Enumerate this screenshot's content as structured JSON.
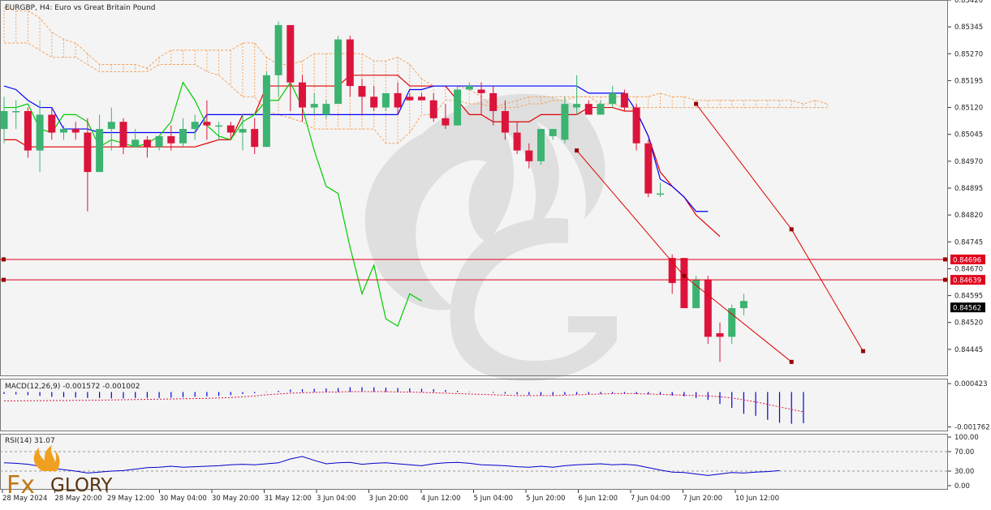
{
  "chart_data": [
    {
      "type": "line",
      "title": "EURGBP, H4: Euro vs Great Britain Pound",
      "xlabel": "",
      "ylabel": "",
      "ylim": [
        0.8437,
        0.8542
      ],
      "grid": false,
      "y_ticks": [
        "0.85420",
        "0.85345",
        "0.85270",
        "0.85195",
        "0.85120",
        "0.85045",
        "0.84970",
        "0.84895",
        "0.84820",
        "0.84745",
        "0.84670",
        "0.84595",
        "0.84520",
        "0.84445"
      ],
      "x_ticks": [
        "28 May 2024",
        "28 May 20:00",
        "29 May 12:00",
        "30 May 04:00",
        "30 May 20:00",
        "31 May 12:00",
        "3 Jun 04:00",
        "3 Jun 20:00",
        "4 Jun 12:00",
        "5 Jun 04:00",
        "5 Jun 20:00",
        "6 Jun 12:00",
        "7 Jun 04:00",
        "7 Jun 20:00",
        "10 Jun 12:00"
      ],
      "price_tags": [
        {
          "text": "0.84696",
          "value": 0.84696,
          "color": "#e0001b"
        },
        {
          "text": "0.84639",
          "value": 0.84639,
          "color": "#e0001b"
        },
        {
          "text": "0.84562",
          "value": 0.84562,
          "color": "#000000"
        }
      ],
      "candles": [
        {
          "o": 0.8506,
          "h": 0.8515,
          "l": 0.8502,
          "c": 0.8511
        },
        {
          "o": 0.8511,
          "h": 0.8514,
          "l": 0.8506,
          "c": 0.8511
        },
        {
          "o": 0.8511,
          "h": 0.8512,
          "l": 0.8498,
          "c": 0.85
        },
        {
          "o": 0.85,
          "h": 0.8514,
          "l": 0.8494,
          "c": 0.851
        },
        {
          "o": 0.851,
          "h": 0.8512,
          "l": 0.8503,
          "c": 0.8505
        },
        {
          "o": 0.8505,
          "h": 0.8507,
          "l": 0.8503,
          "c": 0.8506
        },
        {
          "o": 0.8506,
          "h": 0.8508,
          "l": 0.8503,
          "c": 0.8505
        },
        {
          "o": 0.8505,
          "h": 0.8509,
          "l": 0.8483,
          "c": 0.8494
        },
        {
          "o": 0.8494,
          "h": 0.851,
          "l": 0.8494,
          "c": 0.8506
        },
        {
          "o": 0.8506,
          "h": 0.8512,
          "l": 0.85,
          "c": 0.8508
        },
        {
          "o": 0.8508,
          "h": 0.8509,
          "l": 0.8499,
          "c": 0.8501
        },
        {
          "o": 0.8501,
          "h": 0.8506,
          "l": 0.8501,
          "c": 0.8503
        },
        {
          "o": 0.8503,
          "h": 0.8504,
          "l": 0.8498,
          "c": 0.8501
        },
        {
          "o": 0.8501,
          "h": 0.8504,
          "l": 0.85,
          "c": 0.8504
        },
        {
          "o": 0.8504,
          "h": 0.8507,
          "l": 0.85,
          "c": 0.8502
        },
        {
          "o": 0.8502,
          "h": 0.8509,
          "l": 0.8501,
          "c": 0.8506
        },
        {
          "o": 0.8506,
          "h": 0.851,
          "l": 0.8503,
          "c": 0.8508
        },
        {
          "o": 0.8508,
          "h": 0.8514,
          "l": 0.8503,
          "c": 0.8507
        },
        {
          "o": 0.8507,
          "h": 0.8508,
          "l": 0.8503,
          "c": 0.8507
        },
        {
          "o": 0.8507,
          "h": 0.8508,
          "l": 0.8503,
          "c": 0.8505
        },
        {
          "o": 0.8505,
          "h": 0.851,
          "l": 0.85,
          "c": 0.8506
        },
        {
          "o": 0.8506,
          "h": 0.8509,
          "l": 0.8499,
          "c": 0.8501
        },
        {
          "o": 0.8501,
          "h": 0.8522,
          "l": 0.8501,
          "c": 0.8521
        },
        {
          "o": 0.8521,
          "h": 0.8536,
          "l": 0.8515,
          "c": 0.8535
        },
        {
          "o": 0.8535,
          "h": 0.8535,
          "l": 0.8511,
          "c": 0.8519
        },
        {
          "o": 0.8519,
          "h": 0.8521,
          "l": 0.8508,
          "c": 0.8512
        },
        {
          "o": 0.8512,
          "h": 0.8516,
          "l": 0.851,
          "c": 0.8513
        },
        {
          "o": 0.851,
          "h": 0.8514,
          "l": 0.8509,
          "c": 0.8513
        },
        {
          "o": 0.8513,
          "h": 0.8532,
          "l": 0.8513,
          "c": 0.8531
        },
        {
          "o": 0.8531,
          "h": 0.8532,
          "l": 0.8515,
          "c": 0.8518
        },
        {
          "o": 0.8518,
          "h": 0.852,
          "l": 0.851,
          "c": 0.8515
        },
        {
          "o": 0.8515,
          "h": 0.8518,
          "l": 0.8511,
          "c": 0.8512
        },
        {
          "o": 0.8512,
          "h": 0.8516,
          "l": 0.8511,
          "c": 0.8516
        },
        {
          "o": 0.8516,
          "h": 0.8519,
          "l": 0.851,
          "c": 0.8512
        },
        {
          "o": 0.8515,
          "h": 0.8516,
          "l": 0.8514,
          "c": 0.8514
        },
        {
          "o": 0.8515,
          "h": 0.8516,
          "l": 0.8514,
          "c": 0.8514
        },
        {
          "o": 0.8514,
          "h": 0.8516,
          "l": 0.8508,
          "c": 0.8509
        },
        {
          "o": 0.8509,
          "h": 0.8513,
          "l": 0.8506,
          "c": 0.8507
        },
        {
          "o": 0.8507,
          "h": 0.8518,
          "l": 0.8507,
          "c": 0.8517
        },
        {
          "o": 0.8517,
          "h": 0.8519,
          "l": 0.8517,
          "c": 0.8518
        },
        {
          "o": 0.8517,
          "h": 0.8519,
          "l": 0.851,
          "c": 0.8516
        },
        {
          "o": 0.8516,
          "h": 0.8518,
          "l": 0.8507,
          "c": 0.8511
        },
        {
          "o": 0.8511,
          "h": 0.8514,
          "l": 0.8503,
          "c": 0.8505
        },
        {
          "o": 0.8505,
          "h": 0.8508,
          "l": 0.8499,
          "c": 0.85
        },
        {
          "o": 0.85,
          "h": 0.8502,
          "l": 0.8495,
          "c": 0.8497
        },
        {
          "o": 0.8497,
          "h": 0.8506,
          "l": 0.8496,
          "c": 0.8506
        },
        {
          "o": 0.8504,
          "h": 0.8506,
          "l": 0.8503,
          "c": 0.8506
        },
        {
          "o": 0.8503,
          "h": 0.8515,
          "l": 0.8502,
          "c": 0.8513
        },
        {
          "o": 0.8512,
          "h": 0.8521,
          "l": 0.851,
          "c": 0.8513
        },
        {
          "o": 0.8513,
          "h": 0.8514,
          "l": 0.851,
          "c": 0.851
        },
        {
          "o": 0.851,
          "h": 0.8514,
          "l": 0.851,
          "c": 0.8513
        },
        {
          "o": 0.8513,
          "h": 0.8518,
          "l": 0.8512,
          "c": 0.8516
        },
        {
          "o": 0.8516,
          "h": 0.8517,
          "l": 0.8511,
          "c": 0.8512
        },
        {
          "o": 0.8512,
          "h": 0.8513,
          "l": 0.85,
          "c": 0.8502
        },
        {
          "o": 0.8502,
          "h": 0.8503,
          "l": 0.8487,
          "c": 0.8488
        },
        {
          "o": 0.8488,
          "h": 0.8491,
          "l": 0.8487,
          "c": 0.8488
        },
        {
          "o": 0.847,
          "h": 0.8471,
          "l": 0.846,
          "c": 0.8463
        },
        {
          "o": 0.847,
          "h": 0.847,
          "l": 0.8457,
          "c": 0.8456
        },
        {
          "o": 0.8456,
          "h": 0.8465,
          "l": 0.8456,
          "c": 0.8464
        },
        {
          "o": 0.8464,
          "h": 0.8465,
          "l": 0.8446,
          "c": 0.8448
        },
        {
          "o": 0.8449,
          "h": 0.8452,
          "l": 0.8441,
          "c": 0.8448
        },
        {
          "o": 0.8448,
          "h": 0.8457,
          "l": 0.8446,
          "c": 0.8456
        },
        {
          "o": 0.8456,
          "h": 0.846,
          "l": 0.8454,
          "c": 0.8458
        }
      ],
      "series": [
        {
          "role": "kijun",
          "color": "#e00000",
          "values": [
            0.8503,
            0.8503,
            0.8501,
            0.8501,
            0.8501,
            0.8501,
            0.8501,
            0.8501,
            0.8501,
            0.8501,
            0.8501,
            0.8501,
            0.8501,
            0.8501,
            0.8501,
            0.8501,
            0.8501,
            0.8502,
            0.8503,
            0.8503,
            0.851,
            0.851,
            0.8518,
            0.8518,
            0.8518,
            0.8518,
            0.8518,
            0.8518,
            0.8518,
            0.8521,
            0.8521,
            0.8521,
            0.8521,
            0.8521,
            0.8518,
            0.8518,
            0.8518,
            0.8518,
            0.8514,
            0.851,
            0.851,
            0.8508,
            0.8508,
            0.8508,
            0.8508,
            0.851,
            0.851,
            0.851,
            0.851,
            0.8512,
            0.8512,
            0.8512,
            0.8511,
            0.8511,
            0.8504,
            0.8494,
            0.849,
            0.8487,
            0.8482,
            0.8479,
            0.8476
          ]
        },
        {
          "role": "tenkan",
          "color": "#0000ff",
          "values": [
            0.8518,
            0.8517,
            0.8514,
            0.8512,
            0.8512,
            0.8506,
            0.8506,
            0.8506,
            0.8505,
            0.8505,
            0.8505,
            0.8505,
            0.8505,
            0.8505,
            0.8505,
            0.8505,
            0.8505,
            0.851,
            0.851,
            0.851,
            0.851,
            0.851,
            0.851,
            0.851,
            0.851,
            0.851,
            0.851,
            0.851,
            0.851,
            0.851,
            0.851,
            0.851,
            0.851,
            0.851,
            0.8517,
            0.8517,
            0.8518,
            0.8518,
            0.8518,
            0.8518,
            0.8518,
            0.8518,
            0.8518,
            0.8518,
            0.8518,
            0.8518,
            0.8518,
            0.8518,
            0.8518,
            0.8516,
            0.8516,
            0.8516,
            0.8516,
            0.8511,
            0.8504,
            0.8492,
            0.849,
            0.8487,
            0.8483,
            0.8483
          ]
        },
        {
          "role": "chikou",
          "color": "#00cc00",
          "values": [
            0.8512,
            0.8512,
            0.8513,
            0.8506,
            0.8505,
            0.851,
            0.851,
            0.8508,
            0.8501,
            0.8503,
            0.8502,
            0.8501,
            0.8502,
            0.8504,
            0.8508,
            0.8519,
            0.8514,
            0.8507,
            0.8504,
            0.8503,
            0.8508,
            0.851,
            0.8514,
            0.8514,
            0.8519,
            0.8512,
            0.85,
            0.849,
            0.8488,
            0.8473,
            0.846,
            0.8468,
            0.8453,
            0.8451,
            0.846,
            0.8458
          ]
        },
        {
          "role": "senkou-upper",
          "color": "#f4a460",
          "values": [
            0.854,
            0.8539,
            0.8539,
            0.8537,
            0.8533,
            0.8531,
            0.853,
            0.8527,
            0.8524,
            0.8524,
            0.8524,
            0.8524,
            0.8523,
            0.8526,
            0.8528,
            0.8528,
            0.8528,
            0.8528,
            0.8528,
            0.8528,
            0.853,
            0.853,
            0.8526,
            0.8524,
            0.8524,
            0.8525,
            0.8527,
            0.8527,
            0.8527,
            0.8527,
            0.8527,
            0.8525,
            0.8525,
            0.8526,
            0.8524,
            0.852,
            0.8518,
            0.8518,
            0.8518,
            0.8517,
            0.8515,
            0.8512,
            0.8513,
            0.8514,
            0.8515,
            0.8515,
            0.8515,
            0.8515,
            0.8515,
            0.8515,
            0.8515,
            0.8515,
            0.8515,
            0.8515,
            0.8515,
            0.8516,
            0.8515,
            0.8515,
            0.8514,
            0.8514,
            0.8514,
            0.8514,
            0.8514,
            0.8514,
            0.8514,
            0.8514,
            0.8514,
            0.8513,
            0.8514,
            0.8513
          ]
        },
        {
          "role": "senkou-lower",
          "color": "#f4a460",
          "values": [
            0.853,
            0.853,
            0.853,
            0.8528,
            0.8526,
            0.8526,
            0.8526,
            0.8524,
            0.8522,
            0.8522,
            0.8522,
            0.8522,
            0.8522,
            0.8524,
            0.8524,
            0.8524,
            0.8524,
            0.8522,
            0.8521,
            0.8518,
            0.8515,
            0.8515,
            0.8511,
            0.851,
            0.8509,
            0.8508,
            0.8506,
            0.8506,
            0.8506,
            0.8506,
            0.8506,
            0.8506,
            0.8502,
            0.8502,
            0.8505,
            0.851,
            0.851,
            0.8514,
            0.8514,
            0.8513,
            0.8513,
            0.8512,
            0.8512,
            0.8512,
            0.8513,
            0.8513,
            0.8514,
            0.8514,
            0.8515,
            0.8515,
            0.8513,
            0.8513,
            0.8512,
            0.8512,
            0.8512,
            0.8512,
            0.8512,
            0.8512,
            0.8512,
            0.8512,
            0.8512,
            0.8512,
            0.8512,
            0.8512,
            0.8512,
            0.8512,
            0.8512,
            0.8512,
            0.8512,
            0.8512
          ]
        },
        {
          "role": "trend-line-1",
          "color": "#e00000",
          "points": [
            [
              48,
              0.85
            ],
            [
              57,
              0.8465
            ],
            [
              66,
              0.8441
            ]
          ]
        },
        {
          "role": "trend-line-2",
          "color": "#e00000",
          "points": [
            [
              58,
              0.8513
            ],
            [
              66,
              0.8478
            ],
            [
              72,
              0.8444
            ]
          ]
        }
      ]
    },
    {
      "type": "bar",
      "title": "MACD(12,26,9) -0.001572 -0.001002",
      "ylim": [
        -0.0019,
        0.00055
      ],
      "y_ticks": [
        "0.000423",
        "-0.001762"
      ],
      "values": [
        -0.0001,
        -0.00012,
        -0.00016,
        -0.0002,
        -0.00024,
        -0.00026,
        -0.00028,
        -0.0003,
        -0.0003,
        -0.00032,
        -0.00032,
        -0.0003,
        -0.0003,
        -0.0003,
        -0.00028,
        -0.00026,
        -0.00024,
        -0.00022,
        -0.0002,
        -0.00016,
        -0.0001,
        -6e-05,
        -2e-05,
        6e-05,
        0.00012,
        0.00014,
        0.00016,
        0.00018,
        0.0002,
        0.00024,
        0.00024,
        0.00024,
        0.00022,
        0.0002,
        0.00018,
        0.00016,
        0.00014,
        0.0001,
        6e-05,
        2e-05,
        0.0,
        -4e-05,
        -8e-05,
        -0.00012,
        -0.00016,
        -0.00018,
        -0.00018,
        -0.00014,
        -0.00012,
        -0.0001,
        -0.0001,
        -8e-05,
        -8e-05,
        -0.0001,
        -0.00012,
        -0.00014,
        -0.00018,
        -0.00022,
        -0.0003,
        -0.0004,
        -0.0006,
        -0.0008,
        -0.0011,
        -0.0012,
        -0.0014,
        -0.00155,
        -0.0016,
        -0.00157
      ],
      "signal": [
        -0.00045,
        -0.00045,
        -0.00044,
        -0.00044,
        -0.00043,
        -0.00043,
        -0.00042,
        -0.00042,
        -0.00041,
        -0.0004,
        -0.00039,
        -0.00038,
        -0.00037,
        -0.00036,
        -0.00035,
        -0.00034,
        -0.00033,
        -0.00032,
        -0.0003,
        -0.00028,
        -0.00024,
        -0.0002,
        -0.00014,
        -0.0001,
        -6e-05,
        -4e-05,
        -2e-05,
        0.0,
        0.0,
        2e-05,
        2e-05,
        2e-05,
        2e-05,
        0.0,
        0.0,
        -2e-05,
        -4e-05,
        -6e-05,
        -8e-05,
        -0.0001,
        -0.00012,
        -0.00014,
        -0.00016,
        -0.00018,
        -0.00018,
        -0.00018,
        -0.00018,
        -0.00016,
        -0.00014,
        -0.00012,
        -0.0001,
        -8e-05,
        -8e-05,
        -8e-05,
        -0.0001,
        -0.00012,
        -0.00014,
        -0.00016,
        -0.00018,
        -0.0002,
        -0.00024,
        -0.0003,
        -0.0004,
        -0.0005,
        -0.00062,
        -0.00075,
        -0.00088,
        -0.001
      ]
    },
    {
      "type": "line",
      "title": "RSI(14) 31.07",
      "ylim": [
        0,
        100
      ],
      "y_ticks": [
        "100.00",
        "70.00",
        "30.00",
        "0.00"
      ],
      "levels": [
        70,
        30
      ],
      "series": [
        {
          "color": "#0000cc",
          "values": [
            47,
            46,
            44,
            40,
            36,
            33,
            30,
            26,
            28,
            30,
            31,
            34,
            37,
            38,
            40,
            38,
            39,
            40,
            41,
            43,
            44,
            43,
            45,
            47,
            55,
            60,
            52,
            45,
            47,
            48,
            44,
            46,
            47,
            45,
            43,
            41,
            45,
            47,
            48,
            46,
            43,
            42,
            41,
            39,
            38,
            40,
            38,
            41,
            43,
            44,
            45,
            43,
            44,
            42,
            37,
            32,
            28,
            27,
            24,
            21,
            24,
            27,
            26,
            28,
            29,
            31
          ]
        }
      ]
    }
  ],
  "branding": {
    "logo_text": "FxGLORY",
    "icon": "flame-icon",
    "accent": "#f0a020"
  }
}
